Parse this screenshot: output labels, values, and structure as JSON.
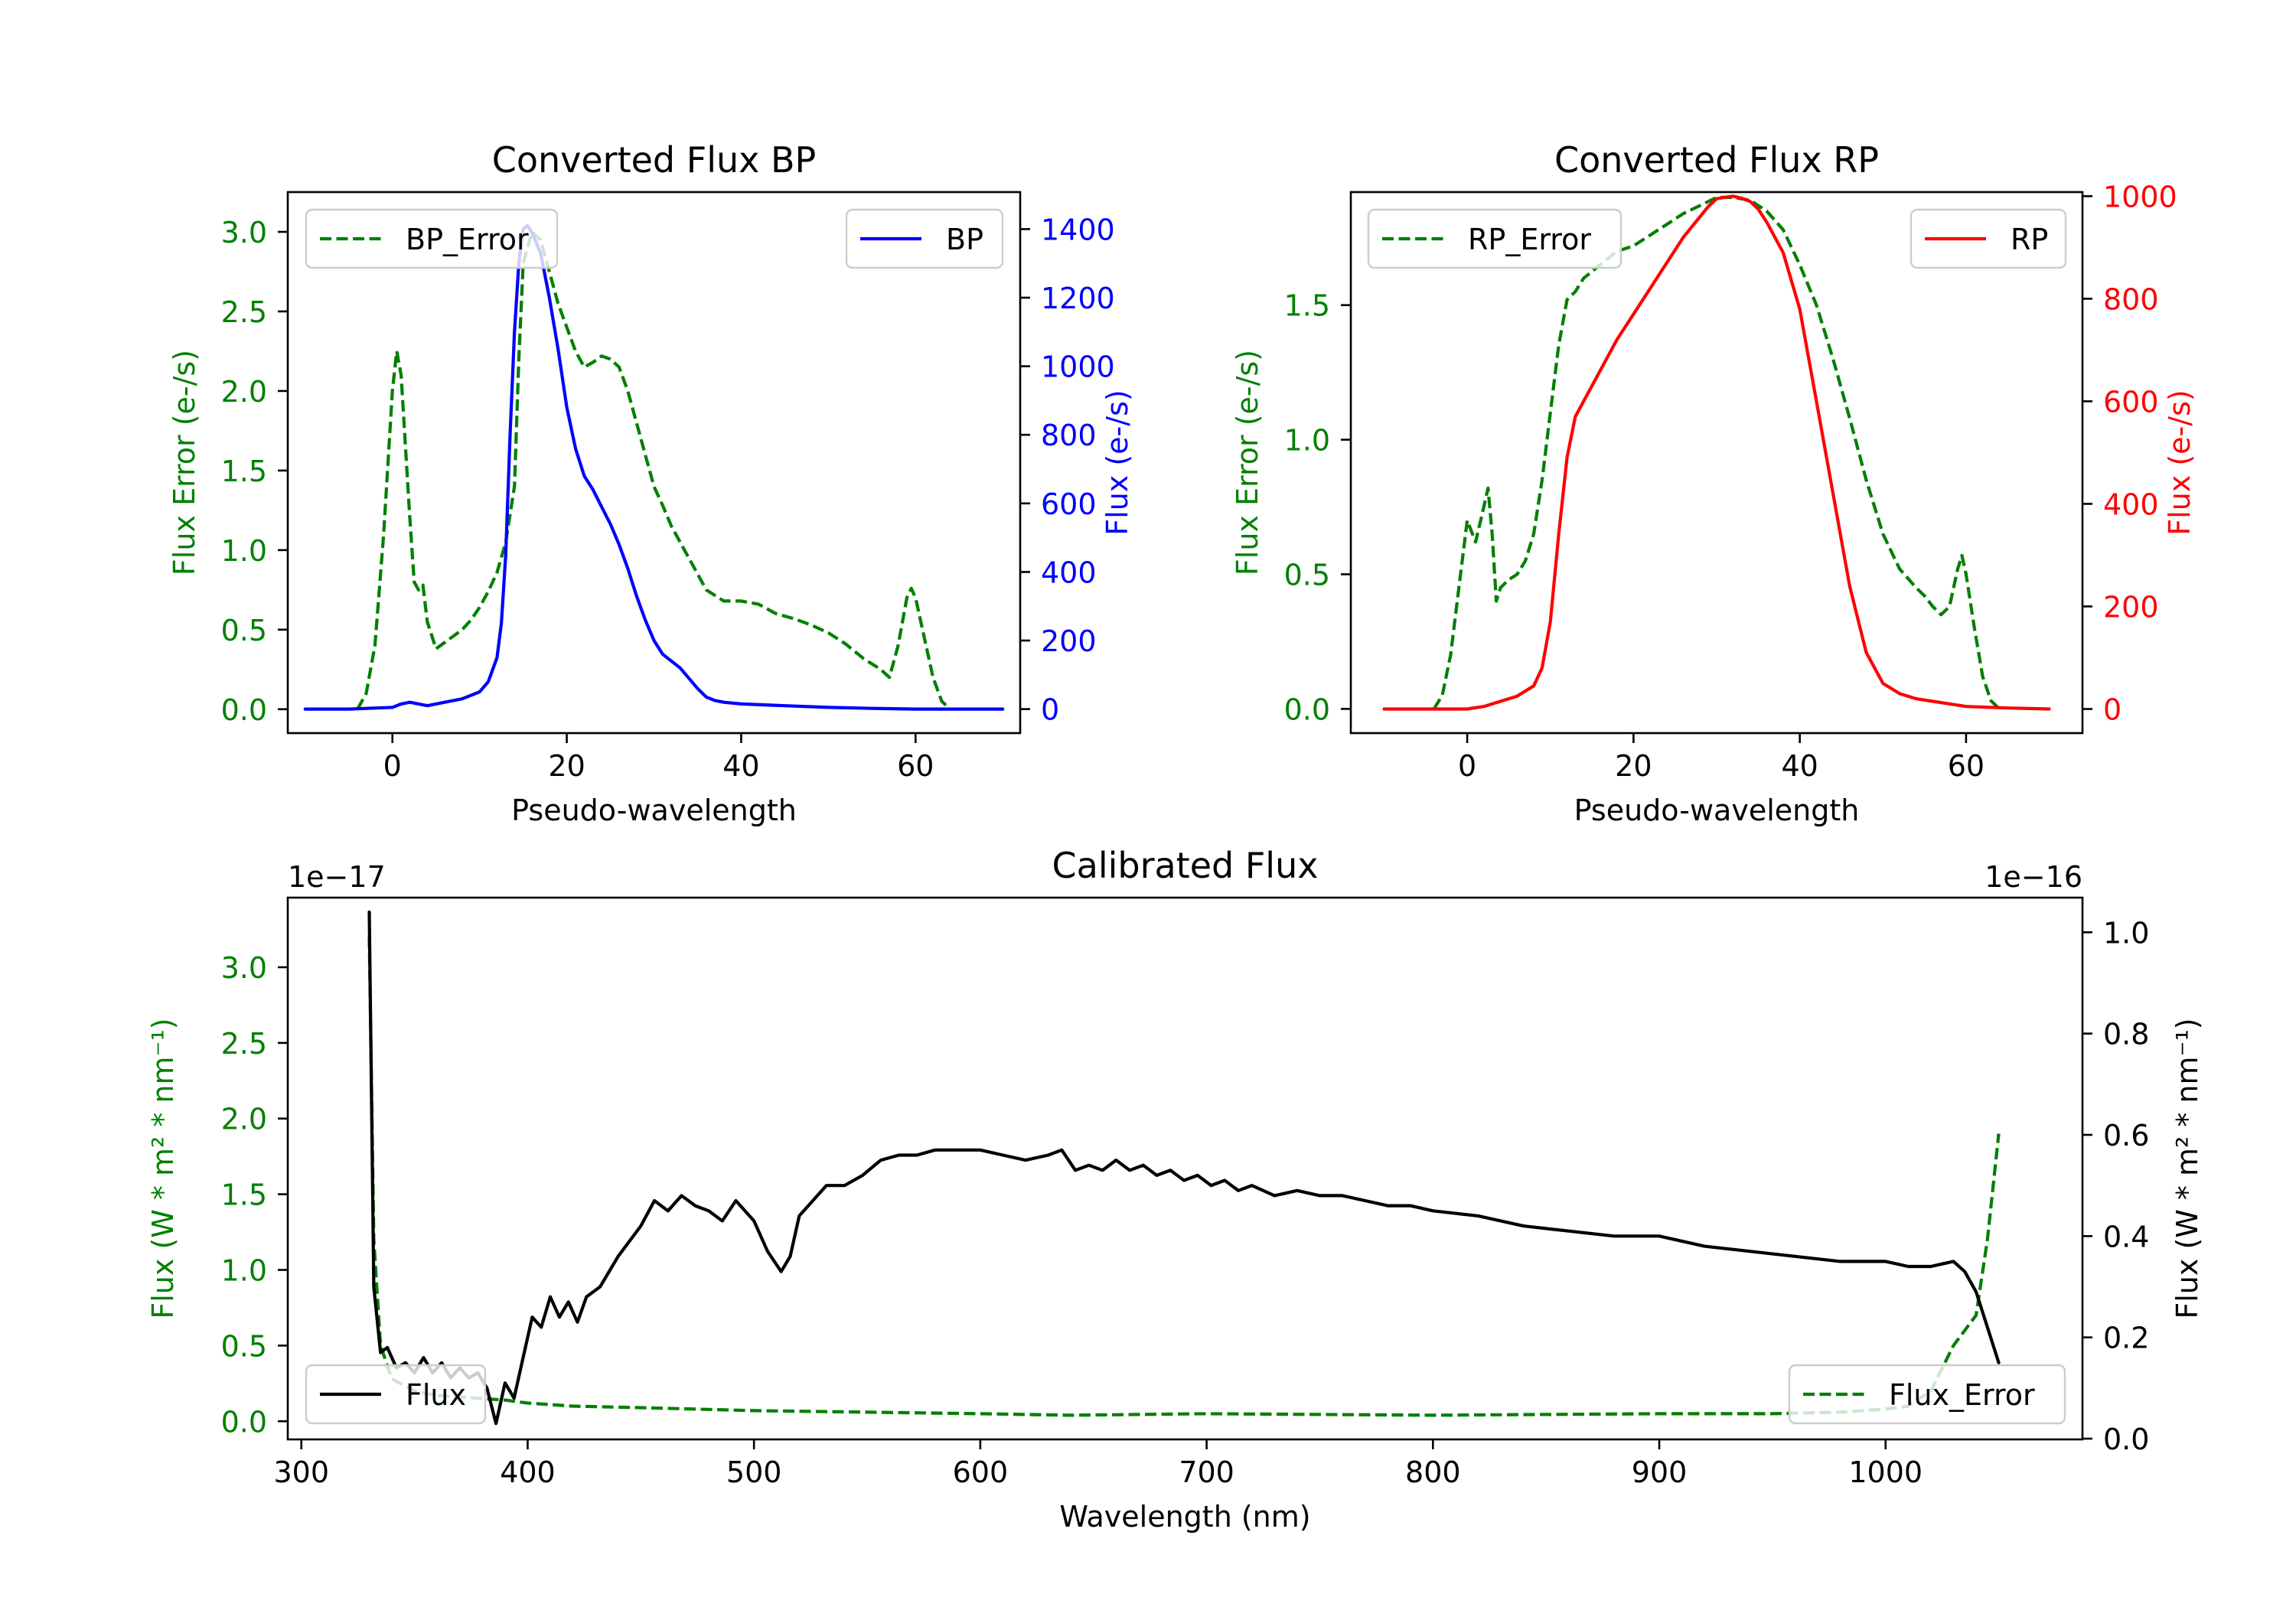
{
  "chart_data": [
    {
      "type": "line",
      "title": "Converted Flux BP",
      "xlabel": "Pseudo-wavelength",
      "ylabel_left": "Flux Error (e-/s)",
      "ylabel_right": "Flux (e-/s)",
      "xlim": [
        -12,
        72
      ],
      "ylim_left": [
        -0.15,
        3.25
      ],
      "ylim_right": [
        -70,
        1508
      ],
      "xticks": [
        "0",
        "20",
        "40",
        "60"
      ],
      "yticks_left": [
        "0.0",
        "0.5",
        "1.0",
        "1.5",
        "2.0",
        "2.5",
        "3.0"
      ],
      "yticks_right": [
        "0",
        "200",
        "400",
        "600",
        "800",
        "1000",
        "1200",
        "1400"
      ],
      "legend_left": "BP_Error",
      "legend_right": "BP",
      "series": [
        {
          "name": "BP_Error",
          "axis": "left",
          "color": "#008000",
          "style": "dashed",
          "x": [
            -4,
            -3,
            -2,
            -1,
            0,
            0.5,
            1,
            2,
            2.5,
            3,
            3.5,
            4,
            5,
            6,
            7,
            8,
            9,
            10,
            11,
            12,
            13,
            14,
            14.5,
            15,
            16,
            17,
            18,
            19,
            20,
            21,
            22,
            23,
            24,
            25,
            26,
            27,
            28,
            29,
            30,
            31,
            32,
            34,
            36,
            38,
            40,
            42,
            44,
            46,
            48,
            50,
            52,
            54,
            56,
            57,
            58,
            59,
            59.5,
            60,
            61,
            62,
            63,
            64
          ],
          "y": [
            0,
            0.1,
            0.4,
            1.1,
            2.0,
            2.25,
            2.1,
            1.2,
            0.8,
            0.75,
            0.78,
            0.55,
            0.38,
            0.42,
            0.46,
            0.5,
            0.56,
            0.64,
            0.74,
            0.86,
            1.05,
            1.4,
            2.2,
            2.8,
            3.0,
            2.95,
            2.75,
            2.55,
            2.4,
            2.25,
            2.15,
            2.18,
            2.22,
            2.2,
            2.15,
            2.0,
            1.8,
            1.6,
            1.4,
            1.28,
            1.15,
            0.95,
            0.75,
            0.68,
            0.68,
            0.66,
            0.6,
            0.57,
            0.53,
            0.48,
            0.41,
            0.32,
            0.25,
            0.2,
            0.4,
            0.7,
            0.76,
            0.7,
            0.45,
            0.2,
            0.05,
            0
          ]
        },
        {
          "name": "BP",
          "axis": "right",
          "color": "#0000ff",
          "style": "solid",
          "x": [
            -10,
            -5,
            0,
            1,
            2,
            4,
            6,
            8,
            10,
            11,
            12,
            12.5,
            13,
            13.5,
            14,
            14.5,
            15,
            15.5,
            16,
            17,
            18,
            19,
            20,
            21,
            22,
            23,
            24,
            25,
            26,
            27,
            28,
            29,
            30,
            31,
            32,
            33,
            34,
            35,
            36,
            37,
            38,
            40,
            45,
            50,
            55,
            60,
            65,
            70
          ],
          "y": [
            0,
            0,
            5,
            15,
            20,
            10,
            20,
            30,
            50,
            80,
            150,
            250,
            450,
            800,
            1100,
            1300,
            1400,
            1410,
            1390,
            1330,
            1200,
            1050,
            880,
            760,
            680,
            640,
            590,
            540,
            480,
            410,
            330,
            260,
            200,
            160,
            140,
            120,
            90,
            60,
            35,
            25,
            20,
            15,
            10,
            5,
            2,
            0,
            0,
            0
          ]
        }
      ]
    },
    {
      "type": "line",
      "title": "Converted Flux RP",
      "xlabel": "Pseudo-wavelength",
      "ylabel_left": "Flux Error (e-/s)",
      "ylabel_right": "Flux (e-/s)",
      "xlim": [
        -14,
        74
      ],
      "ylim_left": [
        -0.09,
        1.92
      ],
      "ylim_right": [
        -47,
        1008
      ],
      "xticks": [
        "0",
        "20",
        "40",
        "60"
      ],
      "yticks_left": [
        "0.0",
        "0.5",
        "1.0",
        "1.5"
      ],
      "yticks_right": [
        "0",
        "200",
        "400",
        "600",
        "800",
        "1000"
      ],
      "legend_left": "RP_Error",
      "legend_right": "RP",
      "series": [
        {
          "name": "RP_Error",
          "axis": "left",
          "color": "#008000",
          "style": "dashed",
          "x": [
            -4,
            -3,
            -2,
            -1,
            0,
            1,
            2,
            2.5,
            3,
            3.5,
            4,
            5,
            6,
            7,
            8,
            9,
            10,
            11,
            12,
            13,
            14,
            16,
            18,
            20,
            22,
            24,
            26,
            28,
            30,
            32,
            34,
            36,
            38,
            40,
            42,
            44,
            46,
            48,
            50,
            52,
            54,
            55,
            56,
            57,
            58,
            59,
            59.5,
            60,
            61,
            62,
            63,
            64
          ],
          "y": [
            0,
            0.05,
            0.2,
            0.45,
            0.7,
            0.62,
            0.75,
            0.82,
            0.65,
            0.4,
            0.45,
            0.48,
            0.5,
            0.55,
            0.65,
            0.85,
            1.1,
            1.35,
            1.52,
            1.55,
            1.6,
            1.65,
            1.7,
            1.72,
            1.76,
            1.8,
            1.84,
            1.87,
            1.9,
            1.9,
            1.89,
            1.85,
            1.78,
            1.65,
            1.5,
            1.3,
            1.08,
            0.85,
            0.65,
            0.52,
            0.45,
            0.42,
            0.38,
            0.35,
            0.38,
            0.52,
            0.57,
            0.5,
            0.3,
            0.12,
            0.03,
            0
          ]
        },
        {
          "name": "RP",
          "axis": "right",
          "color": "#ff0000",
          "style": "solid",
          "x": [
            -10,
            -5,
            0,
            2,
            4,
            6,
            8,
            9,
            10,
            11,
            12,
            13,
            14,
            16,
            18,
            20,
            22,
            24,
            26,
            28,
            29,
            30,
            31,
            32,
            33,
            34,
            35,
            36,
            38,
            40,
            42,
            44,
            46,
            48,
            50,
            52,
            54,
            56,
            58,
            60,
            65,
            70
          ],
          "y": [
            0,
            0,
            0,
            5,
            15,
            25,
            45,
            80,
            170,
            340,
            490,
            570,
            600,
            660,
            720,
            770,
            820,
            870,
            920,
            960,
            980,
            995,
            998,
            1000,
            996,
            990,
            975,
            950,
            890,
            780,
            600,
            420,
            240,
            110,
            50,
            30,
            20,
            15,
            10,
            5,
            2,
            0
          ]
        }
      ]
    },
    {
      "type": "line",
      "title": "Calibrated Flux",
      "xlabel": "Wavelength (nm)",
      "ylabel_left": "Flux (W * m² * nm⁻¹)",
      "ylabel_right": "Flux (W * m² * nm⁻¹)",
      "offset_left": "1e−17",
      "offset_right": "1e−16",
      "xlim": [
        294,
        1087
      ],
      "ylim_left": [
        -0.12,
        3.46
      ],
      "ylim_right": [
        -0.0015,
        1.0685
      ],
      "xticks": [
        "300",
        "400",
        "500",
        "600",
        "700",
        "800",
        "900",
        "1000"
      ],
      "yticks_left": [
        "0.0",
        "0.5",
        "1.0",
        "1.5",
        "2.0",
        "2.5",
        "3.0"
      ],
      "yticks_right": [
        "0.0",
        "0.2",
        "0.4",
        "0.6",
        "0.8",
        "1.0"
      ],
      "legend_left": "Flux",
      "legend_right": "Flux_Error",
      "series": [
        {
          "name": "Flux_Error",
          "axis": "left",
          "color": "#008000",
          "style": "dashed",
          "x": [
            330,
            332,
            335,
            340,
            350,
            360,
            370,
            380,
            390,
            400,
            420,
            450,
            500,
            550,
            600,
            640,
            700,
            800,
            900,
            950,
            980,
            1000,
            1010,
            1020,
            1030,
            1040,
            1045,
            1050
          ],
          "y": [
            3.2,
            1.2,
            0.5,
            0.28,
            0.2,
            0.17,
            0.16,
            0.15,
            0.14,
            0.12,
            0.1,
            0.09,
            0.07,
            0.06,
            0.05,
            0.04,
            0.05,
            0.04,
            0.05,
            0.05,
            0.06,
            0.08,
            0.1,
            0.2,
            0.5,
            0.7,
            1.2,
            1.9
          ]
        },
        {
          "name": "Flux",
          "axis": "right",
          "color": "#000000",
          "style": "solid",
          "x": [
            330,
            332,
            335,
            338,
            342,
            346,
            350,
            354,
            358,
            362,
            366,
            370,
            374,
            378,
            382,
            386,
            390,
            394,
            398,
            402,
            406,
            410,
            414,
            418,
            422,
            426,
            432,
            440,
            450,
            456,
            462,
            468,
            474,
            480,
            486,
            492,
            500,
            506,
            512,
            516,
            520,
            526,
            532,
            540,
            548,
            556,
            564,
            572,
            580,
            590,
            600,
            610,
            620,
            630,
            636,
            642,
            648,
            654,
            660,
            666,
            672,
            678,
            684,
            690,
            696,
            702,
            708,
            714,
            720,
            730,
            740,
            750,
            760,
            770,
            780,
            790,
            800,
            820,
            840,
            860,
            880,
            900,
            920,
            940,
            960,
            980,
            1000,
            1010,
            1020,
            1030,
            1035,
            1040,
            1045,
            1050
          ],
          "y": [
            1.04,
            0.3,
            0.17,
            0.18,
            0.14,
            0.15,
            0.13,
            0.16,
            0.13,
            0.15,
            0.12,
            0.14,
            0.12,
            0.13,
            0.1,
            0.03,
            0.11,
            0.08,
            0.16,
            0.24,
            0.22,
            0.28,
            0.24,
            0.27,
            0.23,
            0.28,
            0.3,
            0.36,
            0.42,
            0.47,
            0.45,
            0.48,
            0.46,
            0.45,
            0.43,
            0.47,
            0.43,
            0.37,
            0.33,
            0.36,
            0.44,
            0.47,
            0.5,
            0.5,
            0.52,
            0.55,
            0.56,
            0.56,
            0.57,
            0.57,
            0.57,
            0.56,
            0.55,
            0.56,
            0.57,
            0.53,
            0.54,
            0.53,
            0.55,
            0.53,
            0.54,
            0.52,
            0.53,
            0.51,
            0.52,
            0.5,
            0.51,
            0.49,
            0.5,
            0.48,
            0.49,
            0.48,
            0.48,
            0.47,
            0.46,
            0.46,
            0.45,
            0.44,
            0.42,
            0.41,
            0.4,
            0.4,
            0.38,
            0.37,
            0.36,
            0.35,
            0.35,
            0.34,
            0.34,
            0.35,
            0.33,
            0.29,
            0.22,
            0.15
          ]
        }
      ]
    }
  ]
}
